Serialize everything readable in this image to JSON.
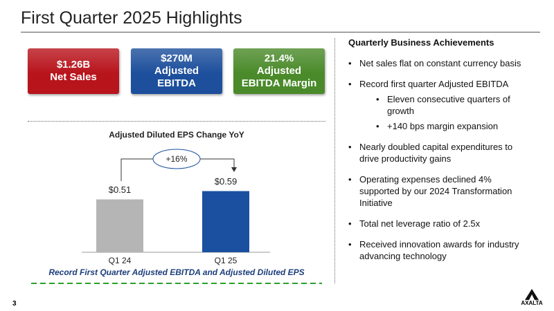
{
  "header": {
    "title": "First Quarter 2025 Highlights"
  },
  "kpis": [
    {
      "lines": [
        "$1.26B",
        "Net Sales"
      ],
      "color": "#b8141c"
    },
    {
      "lines": [
        "$270M",
        "Adjusted",
        "EBITDA"
      ],
      "color": "#1d4f9c"
    },
    {
      "lines": [
        "21.4%",
        "Adjusted",
        "EBITDA Margin"
      ],
      "color": "#4a8a2a"
    }
  ],
  "chart_data": {
    "type": "bar",
    "title": "Adjusted Diluted EPS Change YoY",
    "categories": [
      "Q1 24",
      "Q1 25"
    ],
    "series": [
      {
        "name": null,
        "values": [
          0.51,
          0.59
        ],
        "value_labels": [
          "$0.51",
          "$0.59"
        ],
        "colors": [
          "#b5b5b5",
          "#1b4fa0"
        ]
      }
    ],
    "annotation": "+16%"
  },
  "footer_note": "Record First Quarter Adjusted EBITDA and Adjusted Diluted EPS",
  "achievements": {
    "title": "Quarterly Business Achievements",
    "bullets": [
      {
        "text": "Net sales flat on constant currency basis"
      },
      {
        "text": "Record first quarter Adjusted EBITDA",
        "sub": [
          "Eleven consecutive quarters of growth",
          "+140 bps margin expansion"
        ]
      },
      {
        "text": "Nearly doubled capital expenditures to drive productivity gains"
      },
      {
        "text": "Operating expenses declined 4% supported by our 2024 Transformation Initiative"
      },
      {
        "text": "Total net leverage ratio of 2.5x"
      },
      {
        "text": "Received innovation awards for industry advancing technology"
      }
    ]
  },
  "page_number": "3",
  "logo": "AXALTA"
}
